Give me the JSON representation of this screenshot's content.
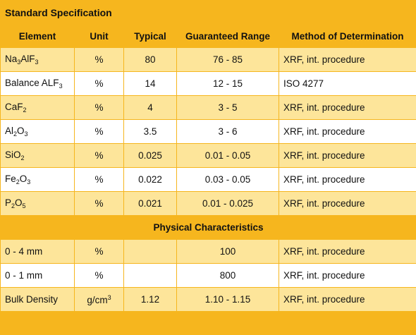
{
  "title": "Standard Specification",
  "headers": [
    "Element",
    "Unit",
    "Typical",
    "Guaranteed Range",
    "Method of Determination"
  ],
  "standard_rows": [
    {
      "element": {
        "parts": [
          {
            "t": "Na"
          },
          {
            "t": "3",
            "sub": true
          },
          {
            "t": "AlF"
          },
          {
            "t": "3",
            "sub": true
          }
        ]
      },
      "unit": "%",
      "typical": "80",
      "range": "76 - 85",
      "method": "XRF, int. procedure"
    },
    {
      "element": {
        "parts": [
          {
            "t": "Balance ALF"
          },
          {
            "t": "3",
            "sub": true
          }
        ]
      },
      "unit": "%",
      "typical": "14",
      "range": "12 - 15",
      "method": "ISO 4277"
    },
    {
      "element": {
        "parts": [
          {
            "t": "CaF"
          },
          {
            "t": "2",
            "sub": true
          }
        ]
      },
      "unit": "%",
      "typical": "4",
      "range": "3 - 5",
      "method": "XRF, int. procedure"
    },
    {
      "element": {
        "parts": [
          {
            "t": "Al"
          },
          {
            "t": "2",
            "sub": true
          },
          {
            "t": "O"
          },
          {
            "t": "3",
            "sub": true
          }
        ]
      },
      "unit": "%",
      "typical": "3.5",
      "range": "3 - 6",
      "method": "XRF, int. procedure"
    },
    {
      "element": {
        "parts": [
          {
            "t": "SiO"
          },
          {
            "t": "2",
            "sub": true
          }
        ]
      },
      "unit": "%",
      "typical": "0.025",
      "range": "0.01 - 0.05",
      "method": "XRF, int. procedure"
    },
    {
      "element": {
        "parts": [
          {
            "t": "Fe"
          },
          {
            "t": "2",
            "sub": true
          },
          {
            "t": "O"
          },
          {
            "t": "3",
            "sub": true
          }
        ]
      },
      "unit": "%",
      "typical": "0.022",
      "range": "0.03 - 0.05",
      "method": "XRF, int. procedure"
    },
    {
      "element": {
        "parts": [
          {
            "t": "P"
          },
          {
            "t": "2",
            "sub": true
          },
          {
            "t": "O"
          },
          {
            "t": "5",
            "sub": true
          }
        ]
      },
      "unit": "%",
      "typical": "0.021",
      "range": "0.01 - 0.025",
      "method": "XRF, int. procedure"
    }
  ],
  "section_title": "Physical Characteristics",
  "physical_rows": [
    {
      "element": {
        "parts": [
          {
            "t": "0 - 4 mm"
          }
        ]
      },
      "unit": {
        "parts": [
          {
            "t": "%"
          }
        ]
      },
      "typical": "",
      "range": "100",
      "method": "XRF, int. procedure"
    },
    {
      "element": {
        "parts": [
          {
            "t": "0 - 1 mm"
          }
        ]
      },
      "unit": {
        "parts": [
          {
            "t": "%"
          }
        ]
      },
      "typical": "",
      "range": "800",
      "method": "XRF, int. procedure"
    },
    {
      "element": {
        "parts": [
          {
            "t": "Bulk Density"
          }
        ]
      },
      "unit": {
        "parts": [
          {
            "t": "g/cm"
          },
          {
            "t": "3",
            "sup": true
          }
        ]
      },
      "typical": "1.12",
      "range": "1.10 - 1.15",
      "method": "XRF, int. procedure"
    }
  ],
  "colors": {
    "accent": "#f6b61e",
    "row_alt": "#fde59a",
    "row_plain": "#ffffff"
  }
}
